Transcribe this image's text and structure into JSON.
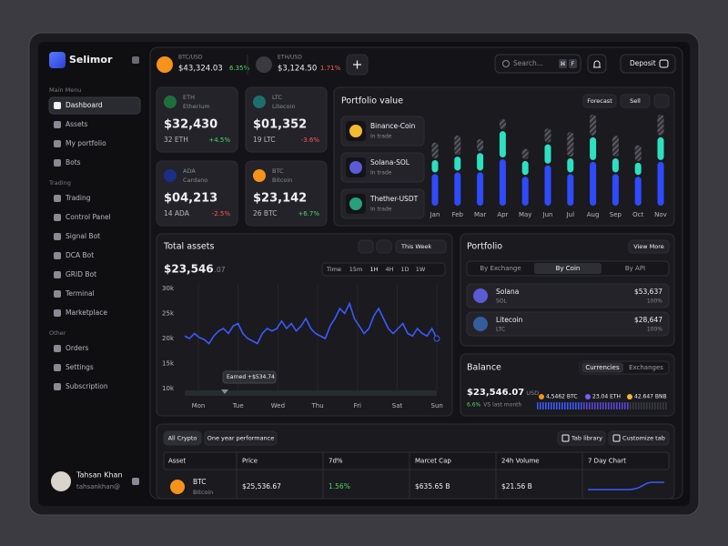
{
  "brand": "Selimor",
  "sidebar": {
    "sections": [
      {
        "title": "Main Menu",
        "items": [
          "Dashboard",
          "Assets",
          "My portfolio",
          "Bots"
        ]
      },
      {
        "title": "Trading",
        "items": [
          "Trading",
          "Control Panel",
          "Signal Bot",
          "DCA Bot",
          "GRID Bot",
          "Terminal",
          "Marketplace"
        ]
      },
      {
        "title": "Other",
        "items": [
          "Orders",
          "Settings",
          "Subscription"
        ]
      }
    ],
    "user": {
      "name": "Tahsan Khan",
      "email": "tahsankhan@"
    }
  },
  "ticker": [
    {
      "pair": "BTC/USD",
      "price": "$43,324.03",
      "change": "6.35%",
      "color": "#f7931a"
    },
    {
      "pair": "ETH/USD",
      "price": "$3,124.50",
      "change": "1.71%",
      "color": "#3a3a40"
    }
  ],
  "search": {
    "placeholder": "Search...",
    "keys": [
      "⌘",
      "F"
    ]
  },
  "deposit": "Deposit",
  "coins": [
    {
      "symbol": "ETH",
      "name": "Etherium",
      "value": "$32,430",
      "holding": "32 ETH",
      "change": "+4.5%",
      "color": "#1f6f3a"
    },
    {
      "symbol": "LTC",
      "name": "Litecoin",
      "value": "$01,352",
      "holding": "19 LTC",
      "change": "-3.6%",
      "color": "#1c6f6a"
    },
    {
      "symbol": "ADA",
      "name": "Cardano",
      "value": "$04,213",
      "holding": "14 ADA",
      "change": "-2.5%",
      "color": "#1b2f8a"
    },
    {
      "symbol": "BTC",
      "name": "Bitcoin",
      "value": "$23,142",
      "holding": "26 BTC",
      "change": "+6.7%",
      "color": "#f7931a"
    }
  ],
  "portfolio_value": {
    "title": "Portfolio value",
    "buttons": [
      "Forecast",
      "Sell"
    ],
    "assets": [
      {
        "name": "Binance-Coin",
        "status": "In trade",
        "color": "#f3ba2f"
      },
      {
        "name": "Solana-SOL",
        "status": "In trade",
        "color": "#5b5bd6"
      },
      {
        "name": "Thether-USDT",
        "status": "In trade",
        "color": "#26a17b"
      }
    ],
    "chart": {
      "type": "bar",
      "categories": [
        "Jan",
        "Feb",
        "Mar",
        "Apr",
        "May",
        "Jun",
        "Jul",
        "Aug",
        "Sep",
        "Oct",
        "Nov"
      ],
      "ylim": [
        0,
        110
      ],
      "series": [
        {
          "color": "#2f4bff",
          "values": [
            38,
            40,
            40,
            55,
            35,
            48,
            38,
            52,
            38,
            35,
            52
          ]
        },
        {
          "color": "#2de0c0",
          "values": [
            16,
            18,
            22,
            32,
            18,
            24,
            18,
            28,
            18,
            16,
            28
          ]
        },
        {
          "color": "#4a4a52",
          "values": [
            20,
            24,
            16,
            14,
            14,
            18,
            30,
            26,
            26,
            20,
            26
          ]
        }
      ]
    }
  },
  "total_assets": {
    "title": "Total assets",
    "period": "This Week",
    "value": "$23,546",
    "cents": ".07",
    "tabs": [
      "Time",
      "15m",
      "1H",
      "4H",
      "1D",
      "1W"
    ],
    "tooltip": "Earned +$534.74",
    "chart": {
      "type": "line",
      "color": "#3b5bff",
      "categories": [
        "Mon",
        "Tue",
        "Wed",
        "Thu",
        "Fri",
        "Sat",
        "Sun"
      ],
      "ylim": [
        10000,
        30000
      ],
      "yticks": [
        {
          "value": 30000,
          "label": "30k"
        },
        {
          "value": 25000,
          "label": "25k"
        },
        {
          "value": 20000,
          "label": "20k"
        },
        {
          "value": 15000,
          "label": "15k"
        },
        {
          "value": 10000,
          "label": "10k"
        }
      ],
      "values": [
        20500,
        20000,
        21000,
        20200,
        19800,
        19000,
        20500,
        21500,
        22000,
        21000,
        22500,
        23000,
        21000,
        20000,
        19500,
        19000,
        21000,
        22000,
        21500,
        22000,
        23500,
        22000,
        23000,
        21500,
        22500,
        24000,
        22000,
        21000,
        20500,
        20000,
        22500,
        24000,
        26000,
        25000,
        27000,
        24000,
        22500,
        21000,
        22000,
        24500,
        26000,
        24000,
        22000,
        21000,
        22000,
        23000,
        21000,
        20500,
        22000,
        21000,
        20500,
        22000,
        20000
      ]
    }
  },
  "portfolio": {
    "title": "Portfolio",
    "action": "View More",
    "tabs": [
      "By Exchange",
      "By Coin",
      "By API"
    ],
    "rows": [
      {
        "name": "Solana",
        "symbol": "SOL",
        "value": "$53,637",
        "share": "100%",
        "color": "#5b5bd6"
      },
      {
        "name": "Litecoin",
        "symbol": "LTC",
        "value": "$28,647",
        "share": "100%",
        "color": "#345d9d"
      }
    ]
  },
  "balance": {
    "title": "Balance",
    "tabs": [
      "Currencies",
      "Exchanges"
    ],
    "value": "$23,546.07",
    "currency": "USD",
    "change": "6.6%",
    "note": "VS last month",
    "holdings": [
      {
        "label": "4,5462 BTC",
        "color": "#f7931a"
      },
      {
        "label": "23.04 ETH",
        "color": "#7b5cff"
      },
      {
        "label": "42.647 BNB",
        "color": "#f3ba2f"
      }
    ]
  },
  "table": {
    "tabs": [
      "All Crypto",
      "One year performance"
    ],
    "buttons": [
      "Tab library",
      "Customize tab"
    ],
    "columns": [
      "Asset",
      "Price",
      "7d%",
      "Marcet Cap",
      "24h Volume",
      "7 Day Chart"
    ],
    "rows": [
      {
        "symbol": "BTC",
        "name": "Bitcoin",
        "price": "$25,536.67",
        "change": "1.56%",
        "cap": "$635.65 B",
        "volume": "$21.56 B"
      }
    ]
  }
}
